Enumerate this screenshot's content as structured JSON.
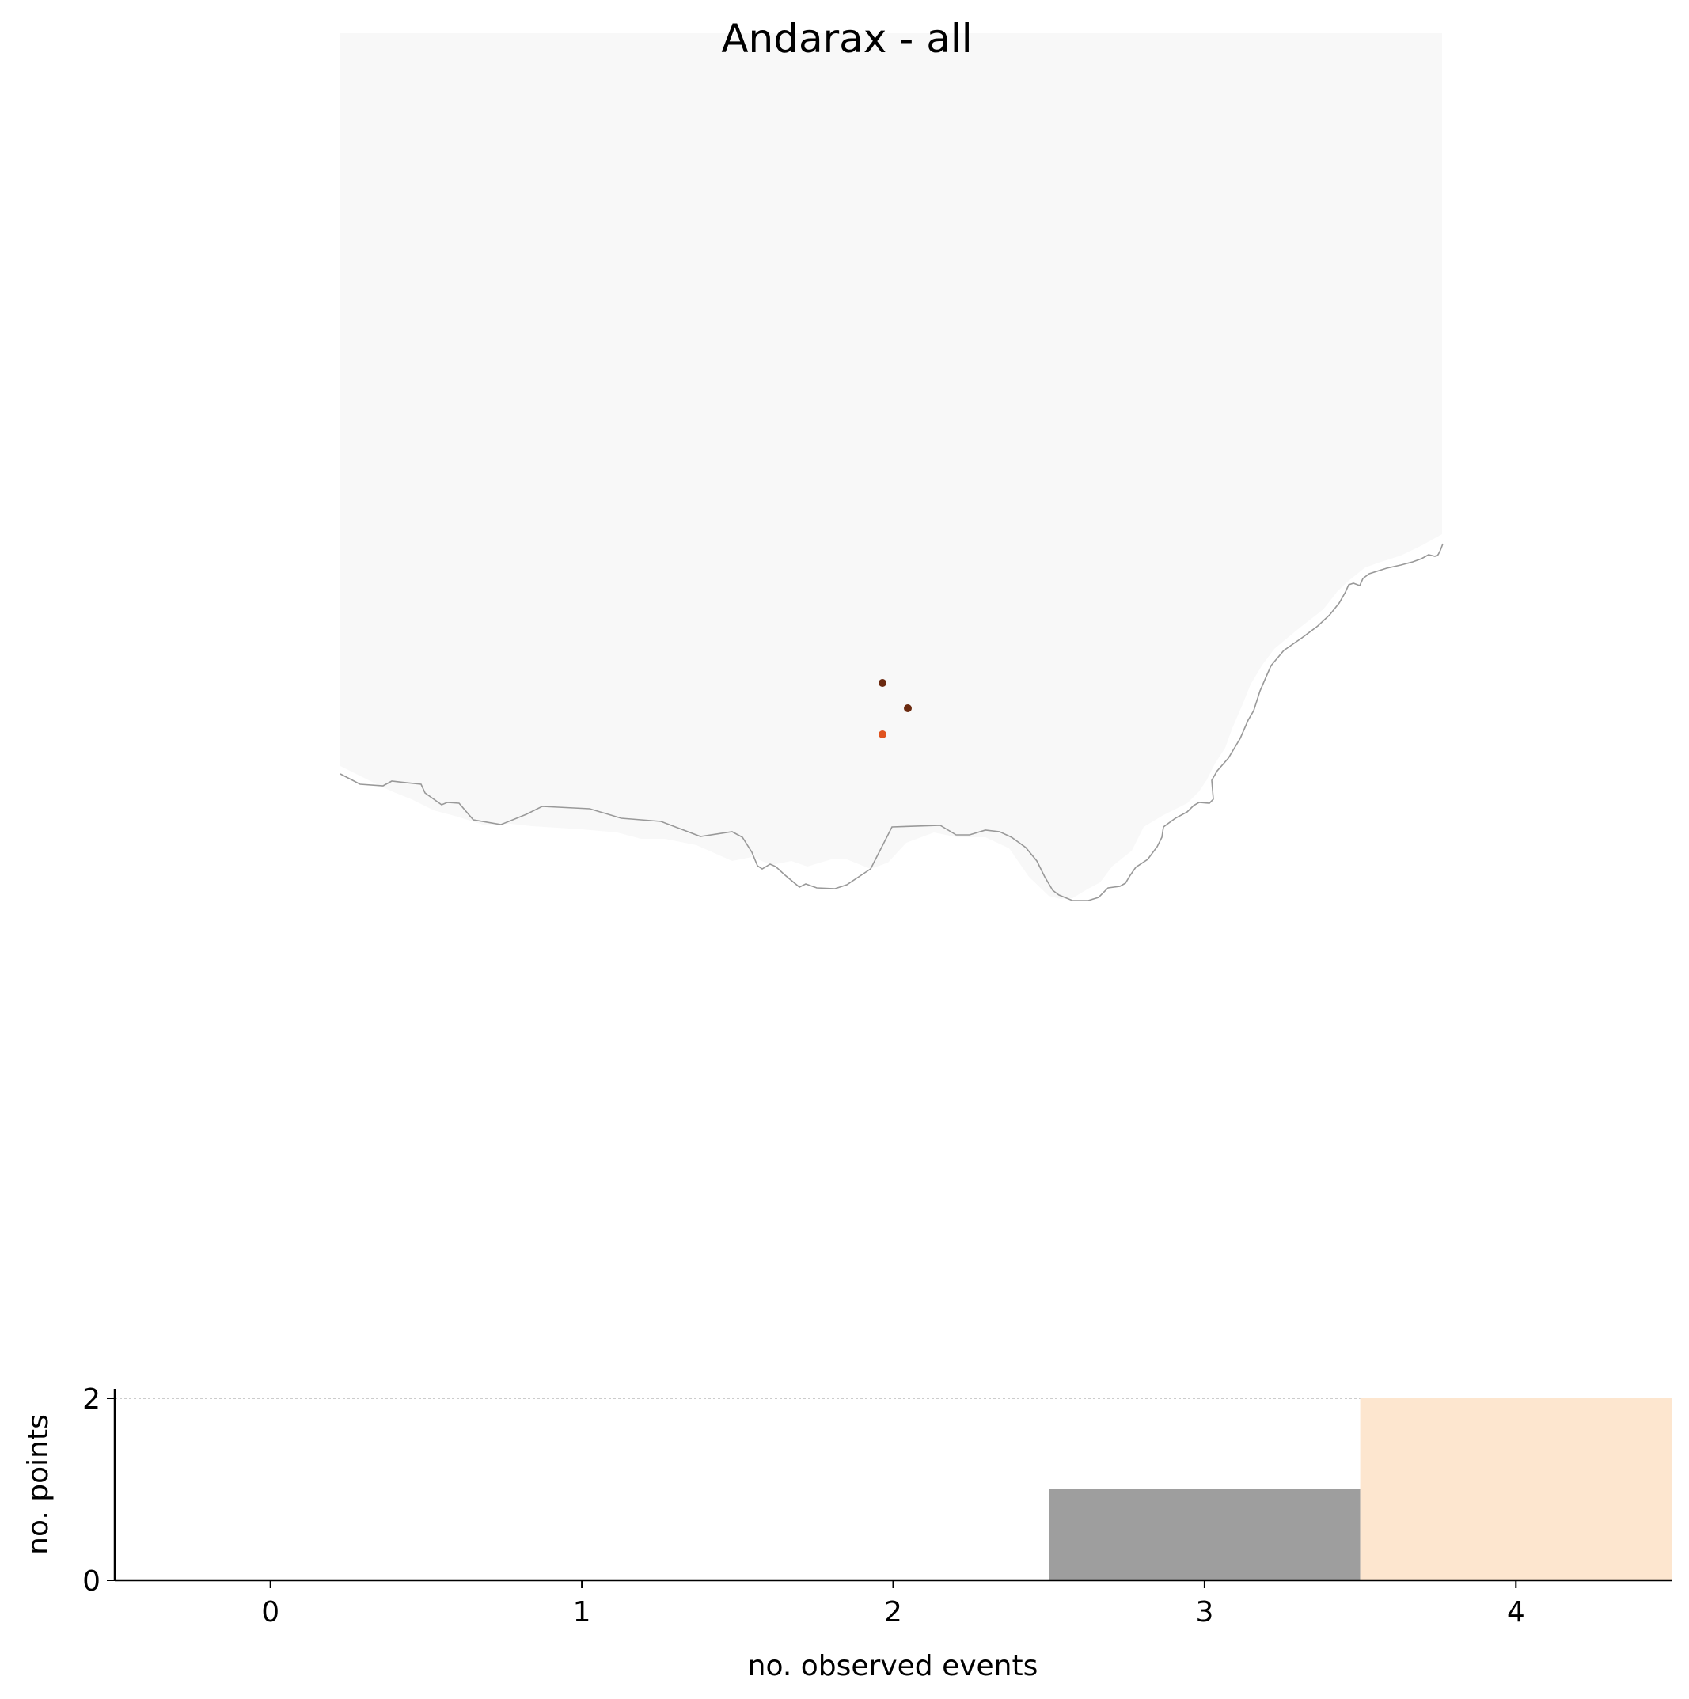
{
  "chart_data": [
    {
      "type": "scatter",
      "title": "Andarax - all",
      "basemap": {
        "land_color": "#f8f8f8",
        "coastline_color": "#999999"
      },
      "points": [
        {
          "color": "#6b2a10"
        },
        {
          "color": "#6b2a10"
        },
        {
          "color": "#e0531f"
        }
      ]
    },
    {
      "type": "bar",
      "xlabel": "no. observed events",
      "ylabel": "no. points",
      "categories": [
        0,
        1,
        2,
        3,
        4
      ],
      "values": [
        0,
        0,
        0,
        1,
        2
      ],
      "colors": [
        "#9e9e9e",
        "#9e9e9e",
        "#9e9e9e",
        "#9e9e9e",
        "#fde6cf"
      ],
      "xticks": [
        "0",
        "1",
        "2",
        "3",
        "4"
      ],
      "yticks": [
        "0",
        "2"
      ],
      "xlim": [
        -0.5,
        4.5
      ],
      "ylim": [
        0,
        2
      ],
      "reference_line": {
        "y": 2,
        "style": "dotted",
        "color": "#bbbbbb"
      }
    }
  ]
}
